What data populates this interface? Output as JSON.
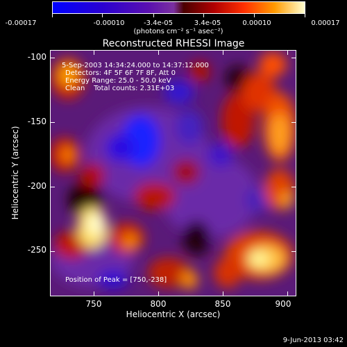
{
  "colorbar": {
    "labels": [
      "-0.00017",
      "-0.00010",
      "-3.4e-05",
      "3.4e-05",
      "0.00010",
      "0.00017"
    ],
    "units": "(photons cm⁻² s⁻¹ asec⁻²)"
  },
  "title": "Reconstructed RHESSI Image",
  "annotations": {
    "time": "5-Sep-2003 14:34:24.000 to 14:37:12.000",
    "detectors": "Detectors: 4F 5F 6F 7F 8F, Att 0",
    "energy": "Energy Range: 25.0 - 50.0 keV",
    "clean": "Clean    Total counts: 2.31E+03",
    "peak": "Position of Peak = [750,-238]"
  },
  "xaxis": {
    "label": "Heliocentric X (arcsec)",
    "ticks": [
      "750",
      "800",
      "850",
      "900"
    ]
  },
  "yaxis": {
    "label": "Heliocentric Y (arcsec)",
    "ticks": [
      "-100",
      "-150",
      "-200",
      "-250"
    ]
  },
  "footer_date": "9-Jun-2013 03:42",
  "chart_data": {
    "type": "heatmap",
    "title": "Reconstructed RHESSI Image",
    "xlabel": "Heliocentric X (arcsec)",
    "ylabel": "Heliocentric Y (arcsec)",
    "xlim": [
      717,
      907
    ],
    "ylim": [
      -286,
      -96
    ],
    "colorscale_range": [
      -0.00017,
      0.00017
    ],
    "peak": [
      750,
      -238
    ]
  }
}
